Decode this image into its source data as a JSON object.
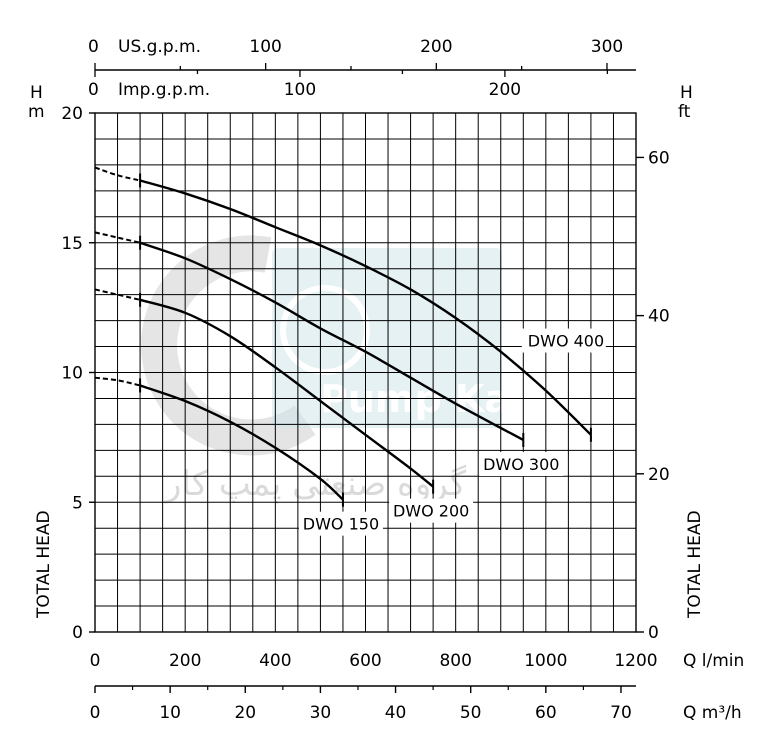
{
  "chart_data": {
    "type": "line",
    "title": "",
    "xlabel": "Q l/min",
    "ylabel": "TOTAL HEAD",
    "xlim": [
      0,
      1200
    ],
    "ylim": [
      0,
      20
    ],
    "grid": true,
    "axes": {
      "left": {
        "unit_top": "H",
        "unit_bottom": "m",
        "ticks": [
          "0",
          "5",
          "10",
          "15",
          "20"
        ],
        "tick_values": [
          0,
          5,
          10,
          15,
          20
        ],
        "title": "TOTAL HEAD"
      },
      "right": {
        "unit_top": "H",
        "unit_bottom": "ft",
        "ticks": [
          "0",
          "20",
          "40",
          "60"
        ],
        "tick_values": [
          0,
          20,
          40,
          60
        ],
        "title": "TOTAL HEAD"
      },
      "bottom_lmin": {
        "unit": "Q l/min",
        "ticks": [
          "0",
          "200",
          "400",
          "600",
          "800",
          "1000",
          "1200"
        ],
        "tick_values": [
          0,
          200,
          400,
          600,
          800,
          1000,
          1200
        ]
      },
      "bottom_m3h": {
        "unit": "Q m³/h",
        "ticks": [
          "0",
          "10",
          "20",
          "30",
          "40",
          "50",
          "60",
          "70"
        ],
        "tick_values": [
          0,
          10,
          20,
          30,
          40,
          50,
          60,
          70
        ]
      },
      "top_us": {
        "unit": "US.g.p.m.",
        "zero": "0",
        "ticks": [
          "100",
          "200",
          "300"
        ],
        "tick_values": [
          100,
          200,
          300
        ]
      },
      "top_imp": {
        "unit": "Imp.g.p.m.",
        "zero": "0",
        "ticks": [
          "100",
          "200"
        ],
        "tick_values": [
          100,
          200
        ]
      }
    },
    "series": [
      {
        "name": "DWO 400",
        "x": [
          0,
          50,
          100,
          200,
          300,
          400,
          500,
          600,
          700,
          800,
          900,
          1000,
          1100
        ],
        "y": [
          17.9,
          17.6,
          17.4,
          16.9,
          16.3,
          15.6,
          14.9,
          14.1,
          13.2,
          12.1,
          10.8,
          9.3,
          7.6
        ]
      },
      {
        "name": "DWO 300",
        "x": [
          0,
          50,
          100,
          200,
          300,
          400,
          500,
          600,
          700,
          800,
          950
        ],
        "y": [
          15.4,
          15.2,
          15.0,
          14.4,
          13.6,
          12.7,
          11.7,
          10.8,
          9.8,
          8.8,
          7.4
        ]
      },
      {
        "name": "DWO 200",
        "x": [
          0,
          50,
          100,
          200,
          300,
          400,
          500,
          600,
          700,
          750
        ],
        "y": [
          13.2,
          13.0,
          12.8,
          12.3,
          11.4,
          10.2,
          8.9,
          7.6,
          6.3,
          5.6
        ]
      },
      {
        "name": "DWO 150",
        "x": [
          0,
          50,
          100,
          200,
          300,
          400,
          500,
          550
        ],
        "y": [
          9.8,
          9.7,
          9.5,
          8.9,
          8.1,
          7.1,
          5.9,
          5.1
        ]
      }
    ],
    "dashed_until_x": 100,
    "label_positions": [
      "right-of-end",
      "below-end",
      "below-end",
      "below-end"
    ]
  },
  "watermark": {
    "latin": "Pump Kar",
    "farsi": "گروه صنعتی پمپ کار"
  }
}
